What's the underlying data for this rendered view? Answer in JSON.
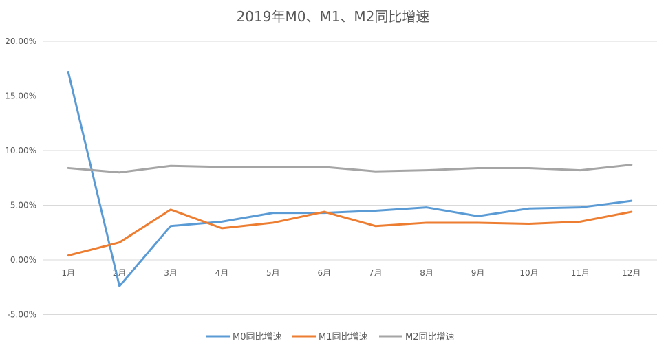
{
  "chart_data": {
    "type": "line",
    "title": "2019年M0、M1、M2同比增速",
    "categories": [
      "1月",
      "2月",
      "3月",
      "4月",
      "5月",
      "6月",
      "7月",
      "8月",
      "9月",
      "10月",
      "11月",
      "12月"
    ],
    "ylim": [
      -5,
      20
    ],
    "yticks": [
      -5,
      0,
      5,
      10,
      15,
      20
    ],
    "ytick_labels": [
      "-5.00%",
      "0.00%",
      "5.00%",
      "10.00%",
      "15.00%",
      "20.00%"
    ],
    "grid": true,
    "legend_position": "bottom",
    "series": [
      {
        "name": "M0同比增速",
        "color": "#5b9bd5",
        "values": [
          17.2,
          -2.4,
          3.1,
          3.5,
          4.3,
          4.3,
          4.5,
          4.8,
          4.0,
          4.7,
          4.8,
          5.4
        ]
      },
      {
        "name": "M1同比增速",
        "color": "#ed7d31",
        "values": [
          0.4,
          1.6,
          4.6,
          2.9,
          3.4,
          4.4,
          3.1,
          3.4,
          3.4,
          3.3,
          3.5,
          4.4
        ]
      },
      {
        "name": "M2同比增速",
        "color": "#a5a5a5",
        "values": [
          8.4,
          8.0,
          8.6,
          8.5,
          8.5,
          8.5,
          8.1,
          8.2,
          8.4,
          8.4,
          8.2,
          8.7
        ]
      }
    ]
  }
}
